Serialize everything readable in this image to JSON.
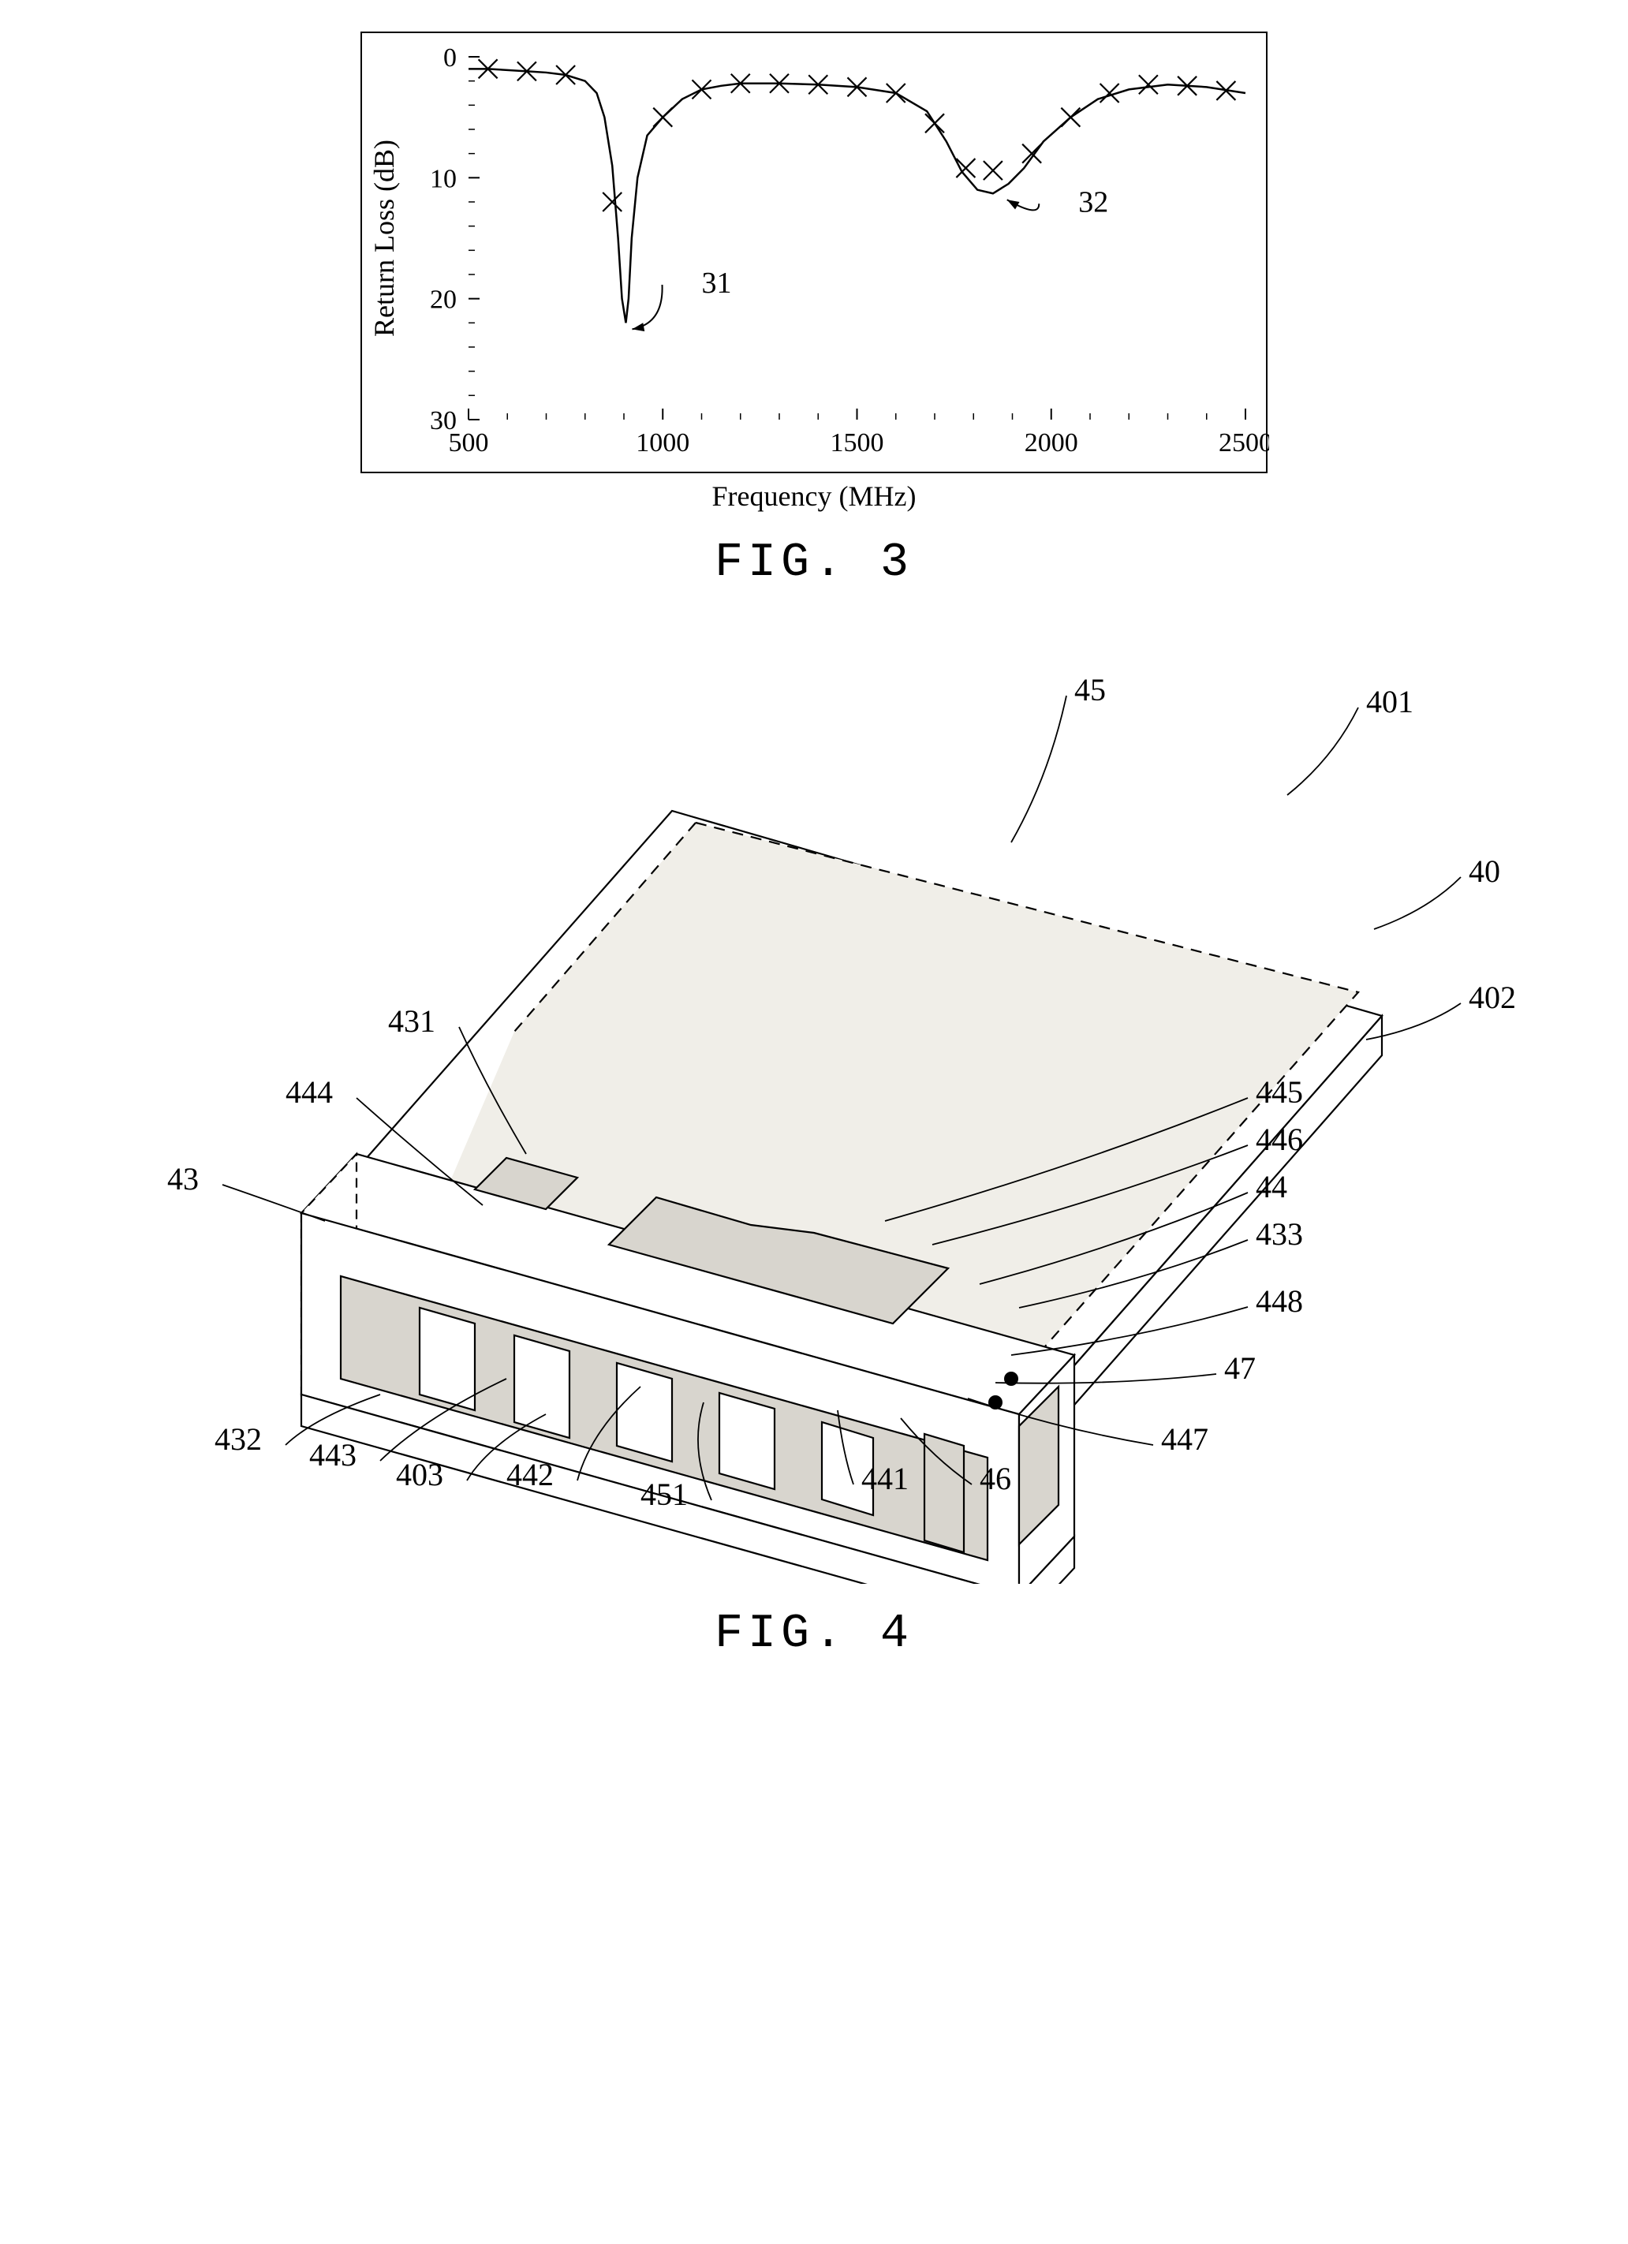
{
  "fig3": {
    "caption": "FIG. 3",
    "type": "line",
    "xlabel": "Frequency (MHz)",
    "ylabel": "Return Loss (dB)",
    "label_fontsize": 36,
    "tick_fontsize": 34,
    "xlim": [
      500,
      2500
    ],
    "ylim_top": 0,
    "ylim_bottom": 30,
    "xticks": [
      500,
      1000,
      1500,
      2000,
      2500
    ],
    "yticks": [
      0,
      10,
      20,
      30
    ],
    "line_color": "#000000",
    "line_width": 2.5,
    "background_color": "#ffffff",
    "curve": [
      [
        500,
        1.0
      ],
      [
        550,
        1.0
      ],
      [
        600,
        1.1
      ],
      [
        650,
        1.2
      ],
      [
        700,
        1.3
      ],
      [
        750,
        1.5
      ],
      [
        800,
        2.0
      ],
      [
        830,
        3.0
      ],
      [
        850,
        5.0
      ],
      [
        870,
        9.0
      ],
      [
        885,
        15.0
      ],
      [
        895,
        20.0
      ],
      [
        905,
        22.0
      ],
      [
        912,
        20.0
      ],
      [
        920,
        15.0
      ],
      [
        935,
        10.0
      ],
      [
        960,
        6.5
      ],
      [
        1000,
        5.0
      ],
      [
        1050,
        3.5
      ],
      [
        1100,
        2.7
      ],
      [
        1150,
        2.4
      ],
      [
        1200,
        2.2
      ],
      [
        1300,
        2.2
      ],
      [
        1400,
        2.3
      ],
      [
        1500,
        2.5
      ],
      [
        1600,
        3.0
      ],
      [
        1680,
        4.5
      ],
      [
        1730,
        7.0
      ],
      [
        1770,
        9.5
      ],
      [
        1810,
        11.0
      ],
      [
        1850,
        11.3
      ],
      [
        1890,
        10.5
      ],
      [
        1930,
        9.2
      ],
      [
        1980,
        7.0
      ],
      [
        2050,
        5.0
      ],
      [
        2120,
        3.5
      ],
      [
        2200,
        2.7
      ],
      [
        2300,
        2.3
      ],
      [
        2400,
        2.5
      ],
      [
        2500,
        3.0
      ]
    ],
    "markers": [
      [
        550,
        1.0
      ],
      [
        650,
        1.2
      ],
      [
        750,
        1.5
      ],
      [
        870,
        12.0
      ],
      [
        1000,
        5.0
      ],
      [
        1100,
        2.7
      ],
      [
        1200,
        2.2
      ],
      [
        1300,
        2.2
      ],
      [
        1400,
        2.3
      ],
      [
        1500,
        2.5
      ],
      [
        1600,
        3.0
      ],
      [
        1700,
        5.5
      ],
      [
        1780,
        9.2
      ],
      [
        1850,
        9.4
      ],
      [
        1950,
        8.0
      ],
      [
        2050,
        5.0
      ],
      [
        2150,
        3.0
      ],
      [
        2250,
        2.3
      ],
      [
        2350,
        2.4
      ],
      [
        2450,
        2.8
      ]
    ],
    "marker_style": "x",
    "marker_size": 12,
    "callouts": [
      {
        "label": "31",
        "tip": [
          905,
          22.0
        ],
        "text_at": [
          1100,
          19.5
        ],
        "side": "right"
      },
      {
        "label": "32",
        "tip": [
          1870,
          11.3
        ],
        "text_at": [
          2070,
          12.8
        ],
        "side": "right"
      }
    ]
  },
  "fig4": {
    "caption": "FIG. 4",
    "type": "diagram",
    "stroke": "#000000",
    "stroke_width": 2.2,
    "fill_top": "#f0eee8",
    "fill_front": "#d8d5ce",
    "callouts": [
      {
        "label": "45",
        "text": [
          1230,
          80
        ],
        "tip": [
          1150,
          260
        ]
      },
      {
        "label": "401",
        "text": [
          1600,
          95
        ],
        "tip": [
          1500,
          200
        ]
      },
      {
        "label": "40",
        "text": [
          1730,
          310
        ],
        "tip": [
          1610,
          370
        ]
      },
      {
        "label": "402",
        "text": [
          1730,
          470
        ],
        "tip": [
          1600,
          510
        ]
      },
      {
        "label": "431",
        "text": [
          420,
          500
        ],
        "tip": [
          535,
          655
        ]
      },
      {
        "label": "444",
        "text": [
          290,
          590
        ],
        "tip": [
          480,
          720
        ]
      },
      {
        "label": "43",
        "text": [
          120,
          700
        ],
        "tip": [
          280,
          740
        ]
      },
      {
        "label": "445",
        "text": [
          1460,
          590
        ],
        "tip": [
          990,
          740
        ]
      },
      {
        "label": "446",
        "text": [
          1460,
          650
        ],
        "tip": [
          1050,
          770
        ]
      },
      {
        "label": "44",
        "text": [
          1460,
          710
        ],
        "tip": [
          1110,
          820
        ]
      },
      {
        "label": "433",
        "text": [
          1460,
          770
        ],
        "tip": [
          1160,
          850
        ]
      },
      {
        "label": "448",
        "text": [
          1460,
          855
        ],
        "tip": [
          1150,
          910
        ]
      },
      {
        "label": "47",
        "text": [
          1420,
          940
        ],
        "tip": [
          1130,
          945
        ]
      },
      {
        "label": "447",
        "text": [
          1340,
          1030
        ],
        "tip": [
          1095,
          965
        ]
      },
      {
        "label": "46",
        "text": [
          1110,
          1080
        ],
        "tip": [
          1010,
          990
        ]
      },
      {
        "label": "441",
        "text": [
          960,
          1080
        ],
        "tip": [
          930,
          980
        ]
      },
      {
        "label": "451",
        "text": [
          740,
          1100
        ],
        "tip": [
          760,
          970
        ]
      },
      {
        "label": "442",
        "text": [
          570,
          1075
        ],
        "tip": [
          680,
          950
        ]
      },
      {
        "label": "403",
        "text": [
          430,
          1075
        ],
        "tip": [
          560,
          985
        ]
      },
      {
        "label": "443",
        "text": [
          320,
          1050
        ],
        "tip": [
          510,
          940
        ]
      },
      {
        "label": "432",
        "text": [
          200,
          1030
        ],
        "tip": [
          350,
          960
        ]
      }
    ]
  }
}
